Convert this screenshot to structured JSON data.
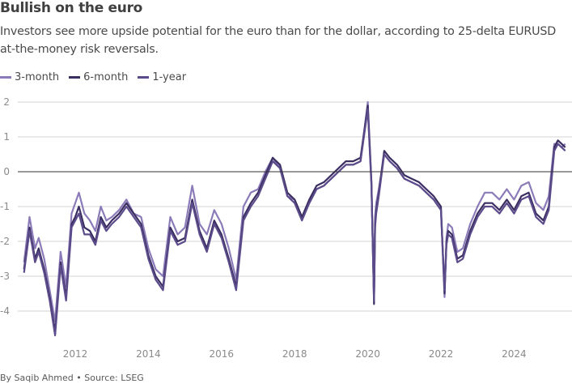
{
  "title": "Bullish on the euro",
  "subtitle": "Investors see more upside potential for the euro than for the dollar, according to 25-delta EURUSD at-the-money risk reversals.",
  "footer": "By Saqib Ahmed • Source: LSEG",
  "chart_data": {
    "type": "line",
    "title": "Bullish on the euro",
    "xlabel": "",
    "ylabel": "",
    "xlim": [
      2010.55,
      2025.5
    ],
    "ylim": [
      -4.9,
      2.3
    ],
    "yticks": [
      2,
      1,
      0,
      -1,
      -2,
      -3,
      -4
    ],
    "ytick_labels": [
      "2",
      "1",
      "0",
      "-1",
      "-2",
      "-3",
      "-4"
    ],
    "xticks": [
      2012,
      2014,
      2016,
      2018,
      2020,
      2022,
      2024
    ],
    "xtick_labels": [
      "2012",
      "2014",
      "2016",
      "2018",
      "2020",
      "2022",
      "2024"
    ],
    "grid": true,
    "zero_line": true,
    "legend": "top-left",
    "x": [
      2010.6,
      2010.75,
      2010.9,
      2011.0,
      2011.15,
      2011.3,
      2011.45,
      2011.6,
      2011.75,
      2011.9,
      2012.0,
      2012.1,
      2012.25,
      2012.4,
      2012.55,
      2012.7,
      2012.85,
      2013.0,
      2013.2,
      2013.4,
      2013.6,
      2013.8,
      2014.0,
      2014.2,
      2014.4,
      2014.6,
      2014.8,
      2015.0,
      2015.2,
      2015.4,
      2015.6,
      2015.8,
      2016.0,
      2016.2,
      2016.4,
      2016.6,
      2016.8,
      2017.0,
      2017.2,
      2017.4,
      2017.6,
      2017.8,
      2018.0,
      2018.2,
      2018.4,
      2018.6,
      2018.8,
      2019.0,
      2019.2,
      2019.4,
      2019.6,
      2019.8,
      2020.0,
      2020.1,
      2020.17,
      2020.2,
      2020.23,
      2020.3,
      2020.45,
      2020.6,
      2020.8,
      2021.0,
      2021.2,
      2021.4,
      2021.6,
      2021.8,
      2022.0,
      2022.1,
      2022.15,
      2022.2,
      2022.3,
      2022.45,
      2022.6,
      2022.8,
      2023.0,
      2023.2,
      2023.4,
      2023.6,
      2023.8,
      2024.0,
      2024.2,
      2024.4,
      2024.6,
      2024.8,
      2024.95,
      2025.1,
      2025.2,
      2025.3,
      2025.4
    ],
    "series": [
      {
        "name": "3-month",
        "color": "#8c7bb9",
        "values": [
          -2.6,
          -1.3,
          -2.2,
          -1.9,
          -2.5,
          -3.4,
          -4.3,
          -2.3,
          -3.3,
          -1.2,
          -0.9,
          -0.6,
          -1.2,
          -1.4,
          -1.7,
          -1.0,
          -1.4,
          -1.3,
          -1.1,
          -0.8,
          -1.2,
          -1.3,
          -2.2,
          -2.8,
          -3.0,
          -1.3,
          -1.8,
          -1.6,
          -0.4,
          -1.5,
          -1.8,
          -1.1,
          -1.5,
          -2.2,
          -3.1,
          -1.0,
          -0.6,
          -0.5,
          0.0,
          0.4,
          0.1,
          -0.7,
          -0.8,
          -1.3,
          -0.9,
          -0.5,
          -0.4,
          -0.2,
          0.0,
          0.2,
          0.2,
          0.3,
          2.0,
          -0.3,
          -3.7,
          -1.3,
          -0.9,
          -0.5,
          0.5,
          0.3,
          0.1,
          -0.2,
          -0.3,
          -0.4,
          -0.6,
          -0.8,
          -1.1,
          -3.6,
          -1.9,
          -1.5,
          -1.6,
          -2.3,
          -2.2,
          -1.5,
          -1.0,
          -0.6,
          -0.6,
          -0.8,
          -0.5,
          -0.8,
          -0.4,
          -0.3,
          -0.9,
          -1.1,
          -0.7,
          0.8,
          0.8,
          0.7,
          0.8
        ]
      },
      {
        "name": "6-month",
        "color": "#3b2f62",
        "values": [
          -2.8,
          -1.6,
          -2.5,
          -2.2,
          -2.8,
          -3.6,
          -4.6,
          -2.6,
          -3.6,
          -1.5,
          -1.3,
          -1.0,
          -1.6,
          -1.7,
          -2.0,
          -1.3,
          -1.6,
          -1.4,
          -1.2,
          -0.9,
          -1.2,
          -1.5,
          -2.4,
          -3.0,
          -3.3,
          -1.6,
          -2.0,
          -1.9,
          -0.8,
          -1.7,
          -2.2,
          -1.4,
          -1.8,
          -2.5,
          -3.3,
          -1.3,
          -0.9,
          -0.6,
          -0.1,
          0.4,
          0.2,
          -0.6,
          -0.8,
          -1.3,
          -0.8,
          -0.4,
          -0.3,
          -0.1,
          0.1,
          0.3,
          0.3,
          0.4,
          1.9,
          -0.3,
          -3.8,
          -1.5,
          -1.1,
          -0.6,
          0.6,
          0.4,
          0.2,
          -0.1,
          -0.2,
          -0.3,
          -0.5,
          -0.7,
          -1.0,
          -3.5,
          -2.0,
          -1.7,
          -1.8,
          -2.5,
          -2.4,
          -1.7,
          -1.2,
          -0.9,
          -0.9,
          -1.1,
          -0.8,
          -1.1,
          -0.7,
          -0.6,
          -1.2,
          -1.4,
          -1.0,
          0.7,
          0.9,
          0.8,
          0.7
        ]
      },
      {
        "name": "1-year",
        "color": "#5b4b8a",
        "values": [
          -2.9,
          -1.7,
          -2.6,
          -2.3,
          -2.9,
          -3.7,
          -4.7,
          -2.7,
          -3.7,
          -1.6,
          -1.4,
          -1.2,
          -1.8,
          -1.8,
          -2.1,
          -1.4,
          -1.7,
          -1.5,
          -1.3,
          -1.0,
          -1.3,
          -1.6,
          -2.5,
          -3.1,
          -3.4,
          -1.7,
          -2.1,
          -2.0,
          -0.9,
          -1.8,
          -2.3,
          -1.5,
          -1.9,
          -2.6,
          -3.4,
          -1.4,
          -1.0,
          -0.7,
          -0.2,
          0.3,
          0.1,
          -0.7,
          -0.9,
          -1.4,
          -0.9,
          -0.5,
          -0.4,
          -0.2,
          0.0,
          0.2,
          0.2,
          0.3,
          1.8,
          -0.4,
          -3.7,
          -1.6,
          -1.2,
          -0.7,
          0.5,
          0.3,
          0.1,
          -0.2,
          -0.3,
          -0.4,
          -0.6,
          -0.8,
          -1.1,
          -3.4,
          -2.1,
          -1.8,
          -1.9,
          -2.6,
          -2.5,
          -1.8,
          -1.3,
          -1.0,
          -1.0,
          -1.2,
          -0.9,
          -1.2,
          -0.8,
          -0.7,
          -1.3,
          -1.5,
          -1.1,
          0.6,
          0.8,
          0.7,
          0.6
        ]
      }
    ]
  }
}
